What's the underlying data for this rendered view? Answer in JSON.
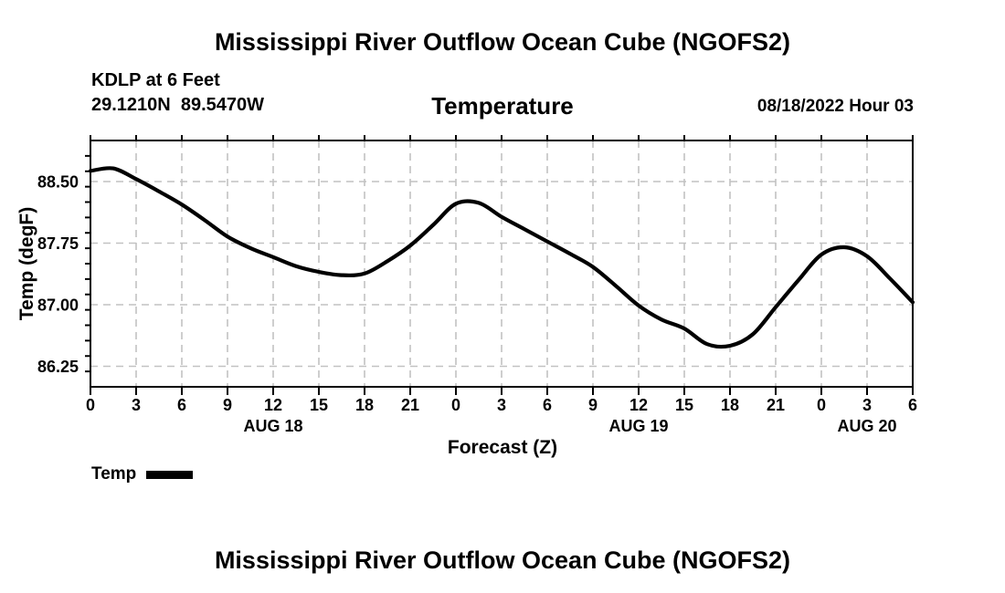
{
  "page_bg": "#ffffff",
  "header": {
    "title": "Mississippi River Outflow Ocean Cube (NGOFS2)",
    "station": "KDLP at 6 Feet",
    "coordinates": "29.1210N  89.5470W",
    "variable": "Temperature",
    "datetime": "08/18/2022 Hour 03"
  },
  "legend": {
    "label": "Temp",
    "swatch_color": "#000000"
  },
  "footer": {
    "next_chart_title": "Mississippi River Outflow Ocean Cube (NGOFS2)"
  },
  "chart_data": {
    "type": "line",
    "title": "Temperature",
    "xlabel": "Forecast (Z)",
    "ylabel": "Temp (degF)",
    "x_hours": [
      0,
      1.5,
      3,
      4.5,
      6,
      7.5,
      9,
      10.5,
      12,
      13.5,
      15,
      16.5,
      18,
      19.5,
      21,
      22.5,
      24,
      25.5,
      27,
      28.5,
      30,
      31.5,
      33,
      34.5,
      36,
      37.5,
      39,
      40.5,
      42,
      43.5,
      45,
      46.5,
      48,
      49.5,
      51,
      52.5,
      54
    ],
    "series": [
      {
        "name": "Temp",
        "color": "#000000",
        "values": [
          88.63,
          88.66,
          88.53,
          88.38,
          88.22,
          88.03,
          87.83,
          87.69,
          87.58,
          87.47,
          87.4,
          87.36,
          87.38,
          87.53,
          87.72,
          87.97,
          88.23,
          88.24,
          88.07,
          87.92,
          87.77,
          87.62,
          87.46,
          87.23,
          86.99,
          86.82,
          86.71,
          86.52,
          86.5,
          86.64,
          86.97,
          87.3,
          87.61,
          87.7,
          87.59,
          87.32,
          87.03
        ]
      }
    ],
    "xlim_hours": [
      0,
      54
    ],
    "ylim": [
      86.0,
      89.0
    ],
    "xticks": {
      "step_hours": 3,
      "labels": [
        "0",
        "3",
        "6",
        "9",
        "12",
        "15",
        "18",
        "21",
        "0",
        "3",
        "6",
        "9",
        "12",
        "15",
        "18",
        "21",
        "0",
        "3",
        "6"
      ]
    },
    "yticks": {
      "major_values": [
        86.25,
        87.0,
        87.75,
        88.5
      ],
      "major_labels": [
        "86.25",
        "87.00",
        "87.75",
        "88.50"
      ],
      "minor_step": 0.1875
    },
    "date_labels": [
      {
        "label": "AUG 18",
        "hour": 12
      },
      {
        "label": "AUG 19",
        "hour": 36
      },
      {
        "label": "AUG 20",
        "hour": 51
      }
    ],
    "grid": {
      "show": true,
      "color": "#c2c2c2",
      "dash": "8 6"
    },
    "legend_position": "below-left",
    "line_width": 4.2
  }
}
